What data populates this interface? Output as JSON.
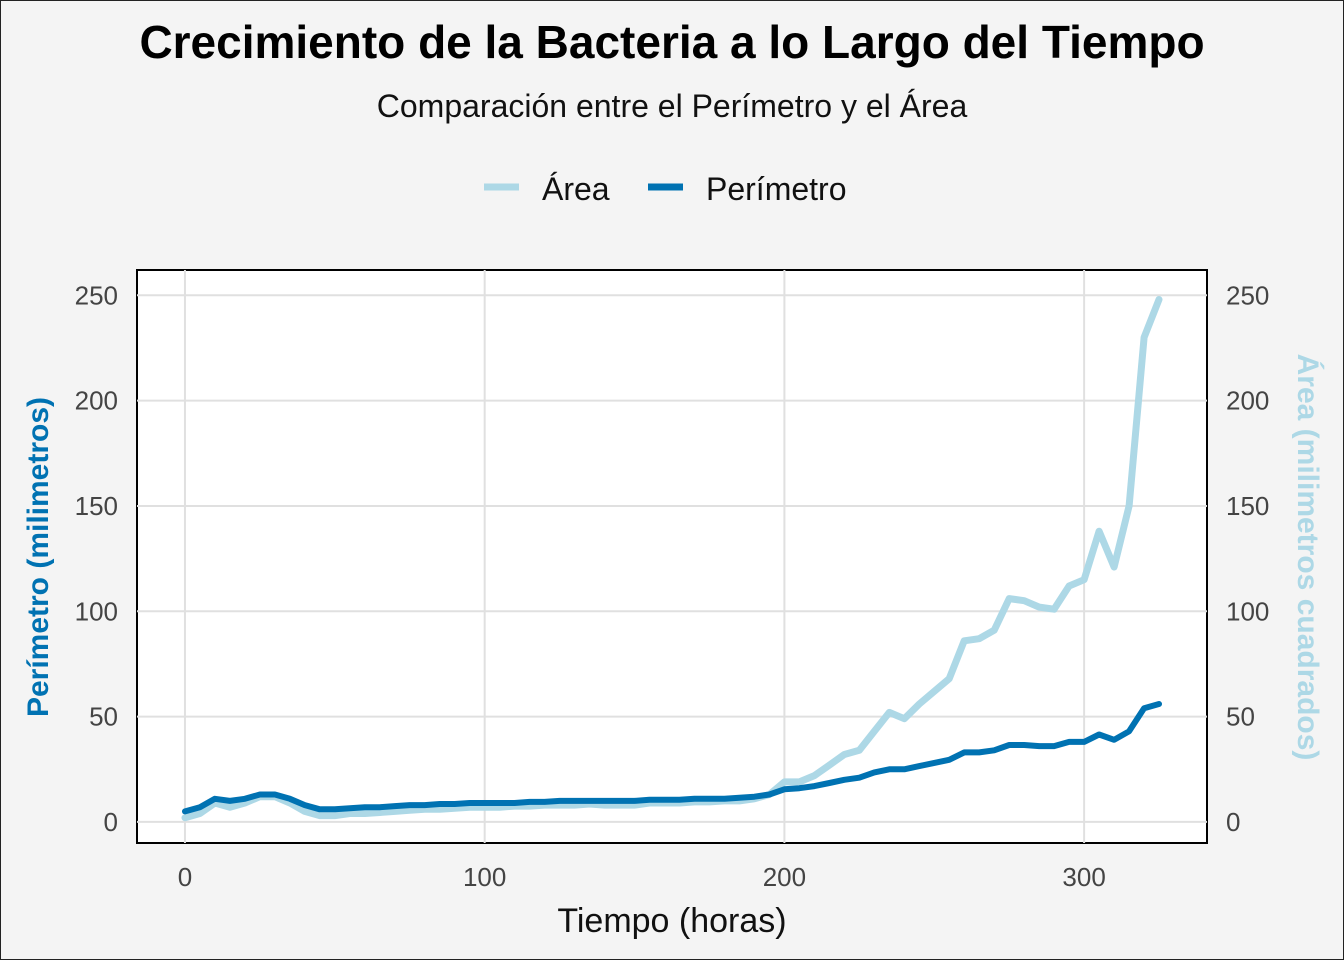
{
  "chart_data": {
    "type": "line",
    "title": "Crecimiento de la Bacteria a lo Largo del Tiempo",
    "subtitle": "Comparación entre el Perímetro y el Área",
    "xlabel": "Tiempo (horas)",
    "ylabel": "Perímetro (milimetros)",
    "ylabel_right": "Área (milimetros cuadrados)",
    "xlim": [
      -16,
      341
    ],
    "ylim": [
      -10,
      262
    ],
    "x_ticks": [
      0,
      100,
      200,
      300
    ],
    "y_ticks": [
      0,
      50,
      100,
      150,
      200,
      250
    ],
    "y_ticks_right": [
      0,
      50,
      100,
      150,
      200,
      250
    ],
    "grid": true,
    "legend_position": "top",
    "legend": [
      "Área",
      "Perímetro"
    ],
    "series": [
      {
        "name": "Área",
        "color": "#add8e6",
        "x": [
          0,
          5,
          10,
          15,
          20,
          25,
          30,
          35,
          40,
          45,
          50,
          55,
          60,
          65,
          70,
          75,
          80,
          85,
          90,
          95,
          100,
          105,
          110,
          115,
          120,
          125,
          130,
          135,
          140,
          145,
          150,
          155,
          160,
          165,
          170,
          175,
          180,
          185,
          190,
          195,
          200,
          205,
          210,
          215,
          220,
          225,
          230,
          235,
          240,
          245,
          250,
          255,
          260,
          265,
          270,
          275,
          280,
          285,
          290,
          295,
          300,
          305,
          310,
          315,
          320,
          325
        ],
        "values": [
          2,
          4,
          9,
          7,
          9,
          12,
          12,
          9,
          5,
          3,
          3,
          4,
          4,
          4.5,
          5,
          5.5,
          6,
          6,
          6.5,
          7,
          7,
          7,
          7.5,
          7.5,
          8,
          8,
          8,
          8.5,
          8,
          8,
          8,
          9,
          9,
          9,
          9.5,
          9.5,
          10,
          10,
          11,
          13,
          19,
          19,
          22,
          27,
          32,
          34,
          43,
          52,
          49,
          56,
          62,
          68,
          86,
          87,
          91,
          106,
          105,
          102,
          101,
          112,
          115,
          138,
          121,
          150,
          230,
          248
        ]
      },
      {
        "name": "Perímetro",
        "color": "#0072b2",
        "x": [
          0,
          5,
          10,
          15,
          20,
          25,
          30,
          35,
          40,
          45,
          50,
          55,
          60,
          65,
          70,
          75,
          80,
          85,
          90,
          95,
          100,
          105,
          110,
          115,
          120,
          125,
          130,
          135,
          140,
          145,
          150,
          155,
          160,
          165,
          170,
          175,
          180,
          185,
          190,
          195,
          200,
          205,
          210,
          215,
          220,
          225,
          230,
          235,
          240,
          245,
          250,
          255,
          260,
          265,
          270,
          275,
          280,
          285,
          290,
          295,
          300,
          305,
          310,
          315,
          320,
          325
        ],
        "values": [
          5,
          7,
          11,
          10,
          11,
          13,
          13,
          11,
          8,
          6,
          6,
          6.5,
          7,
          7,
          7.5,
          8,
          8,
          8.5,
          8.5,
          9,
          9,
          9,
          9,
          9.5,
          9.5,
          10,
          10,
          10,
          10,
          10,
          10,
          10.5,
          10.5,
          10.5,
          11,
          11,
          11,
          11.5,
          12,
          13,
          15.5,
          16,
          17,
          18.5,
          20,
          21,
          23.5,
          25,
          25,
          26.5,
          28,
          29.5,
          33,
          33,
          34,
          36.5,
          36.5,
          36,
          36,
          38,
          38,
          41.5,
          39,
          43,
          54,
          56
        ]
      }
    ]
  }
}
